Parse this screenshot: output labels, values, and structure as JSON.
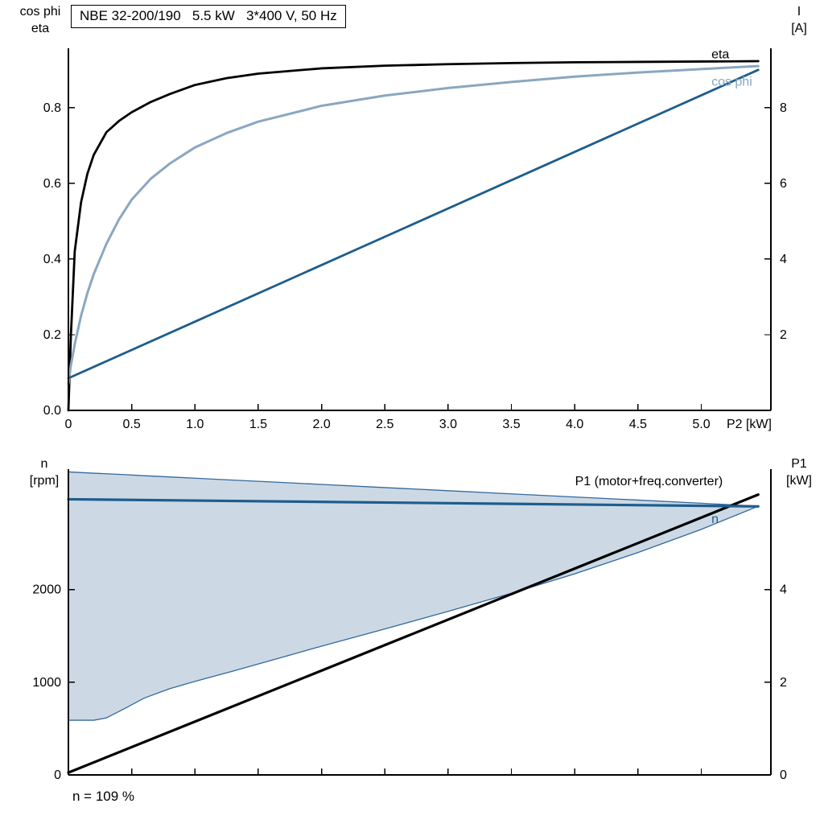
{
  "title_box": "NBE 32-200/190   5.5 kW   3*400 V, 50 Hz",
  "annotation": "n = 109 %",
  "axis_corner_labels": {
    "top_left": [
      "cos phi",
      "eta"
    ],
    "top_right": [
      "I",
      "[A]"
    ],
    "bottom_left": [
      "n",
      "[rpm]"
    ],
    "bottom_right": [
      "P1",
      "[kW]"
    ]
  },
  "colors": {
    "black": "#000000",
    "dark_blue": "#1d5d8d",
    "light_blue": "#8aa7c0",
    "band_fill": "#ccd9e5",
    "band_edge": "#35689b"
  },
  "chart_data": [
    {
      "type": "line",
      "title": "NBE 32-200/190   5.5 kW   3*400 V, 50 Hz",
      "xlabel": "P2 [kW]",
      "ylabel_left": "cos phi / eta",
      "ylabel_right": "I [A]",
      "grid": false,
      "xlim": [
        0,
        5.55
      ],
      "yleft": {
        "lim": [
          0,
          0.957
        ],
        "ticks": [
          0,
          0.2,
          0.4,
          0.6,
          0.8
        ],
        "tick_labels": [
          "0.0",
          "0.2",
          "0.4",
          "0.6",
          "0.8"
        ]
      },
      "yright": {
        "lim": [
          0,
          9.57
        ],
        "ticks": [
          2,
          4,
          6,
          8
        ],
        "tick_labels": [
          "2",
          "4",
          "6",
          "8"
        ]
      },
      "xticks": {
        "values": [
          0,
          0.5,
          1,
          1.5,
          2,
          2.5,
          3,
          3.5,
          4,
          4.5,
          5
        ],
        "labels": [
          "0",
          "0.5",
          "1.0",
          "1.5",
          "2.0",
          "2.5",
          "3.0",
          "3.5",
          "4.0",
          "4.5",
          "5.0"
        ]
      },
      "series": [
        {
          "name": "eta",
          "axis": "left",
          "color": "#000000",
          "width": 2.8,
          "x": [
            0,
            0.02,
            0.05,
            0.1,
            0.15,
            0.2,
            0.3,
            0.4,
            0.5,
            0.65,
            0.8,
            1.0,
            1.25,
            1.5,
            2.0,
            2.5,
            3.0,
            3.5,
            4.0,
            4.5,
            5.0,
            5.45
          ],
          "y": [
            0,
            0.2,
            0.42,
            0.55,
            0.625,
            0.675,
            0.735,
            0.765,
            0.788,
            0.815,
            0.836,
            0.86,
            0.878,
            0.89,
            0.904,
            0.911,
            0.915,
            0.918,
            0.92,
            0.921,
            0.922,
            0.923
          ]
        },
        {
          "name": "cos phi",
          "axis": "left",
          "color": "#8aa7c0",
          "width": 3,
          "x": [
            0,
            0.02,
            0.05,
            0.1,
            0.15,
            0.2,
            0.3,
            0.4,
            0.5,
            0.65,
            0.8,
            1.0,
            1.25,
            1.5,
            2.0,
            2.5,
            3.0,
            3.5,
            4.0,
            4.5,
            5.0,
            5.45
          ],
          "y": [
            0.07,
            0.12,
            0.175,
            0.25,
            0.31,
            0.36,
            0.44,
            0.505,
            0.557,
            0.612,
            0.652,
            0.695,
            0.733,
            0.763,
            0.805,
            0.832,
            0.852,
            0.868,
            0.882,
            0.893,
            0.902,
            0.91
          ]
        },
        {
          "name": "I",
          "axis": "right",
          "color": "#1d5d8d",
          "width": 2.8,
          "x": [
            0,
            5.45
          ],
          "y": [
            0.85,
            9.0
          ]
        }
      ],
      "labels": [
        {
          "text": "eta",
          "x": 5.08,
          "y": 0.93,
          "axis": "left",
          "anchor": "start",
          "color": "#000000"
        },
        {
          "text": "cos phi",
          "x": 5.08,
          "y": 0.858,
          "axis": "left",
          "anchor": "start",
          "color": "#8aa7c0"
        }
      ]
    },
    {
      "type": "line+area",
      "title": "",
      "xlabel": "",
      "ylabel_left": "n [rpm]",
      "ylabel_right": "P1 [kW]",
      "grid": false,
      "xlim": [
        0,
        5.55
      ],
      "yleft": {
        "lim": [
          0,
          3300
        ],
        "ticks": [
          0,
          1000,
          2000
        ],
        "tick_labels": [
          "0",
          "1000",
          "2000"
        ]
      },
      "yright": {
        "lim": [
          0,
          6.6
        ],
        "ticks": [
          0,
          2,
          4
        ],
        "tick_labels": [
          "0",
          "2",
          "4"
        ]
      },
      "xticks": {
        "values": [
          0,
          0.5,
          1,
          1.5,
          2,
          2.5,
          3,
          3.5,
          4,
          4.5,
          5
        ],
        "labels": null
      },
      "band": {
        "x": [
          0,
          0.2,
          0.3,
          0.45,
          0.6,
          0.8,
          1.0,
          1.3,
          1.6,
          2.0,
          2.5,
          3.0,
          3.5,
          4.0,
          4.5,
          5.0,
          5.45
        ],
        "upper": [
          3270,
          3256,
          3250,
          3240,
          3229,
          3216,
          3202,
          3182,
          3162,
          3135,
          3101,
          3067,
          3033,
          2999,
          2966,
          2932,
          2900
        ],
        "lower": [
          590,
          590,
          615,
          720,
          830,
          930,
          1010,
          1120,
          1235,
          1390,
          1575,
          1765,
          1960,
          2170,
          2400,
          2650,
          2900
        ]
      },
      "series": [
        {
          "name": "P1 (motor+freq.converter)",
          "axis": "right",
          "color": "#000000",
          "width": 3.2,
          "x": [
            0,
            5.45
          ],
          "y": [
            0.05,
            6.05
          ]
        },
        {
          "name": "n",
          "axis": "left",
          "color": "#1d5d8d",
          "width": 3.2,
          "x": [
            0,
            5.45
          ],
          "y": [
            2975,
            2898
          ]
        }
      ],
      "labels": [
        {
          "text": "P1 (motor+freq.converter)",
          "x": 5.17,
          "y": 6.25,
          "axis": "right",
          "anchor": "end",
          "color": "#000000"
        },
        {
          "text": "n",
          "x": 5.08,
          "y": 2720,
          "axis": "left",
          "anchor": "start",
          "color": "#1d5d8d"
        }
      ]
    }
  ]
}
